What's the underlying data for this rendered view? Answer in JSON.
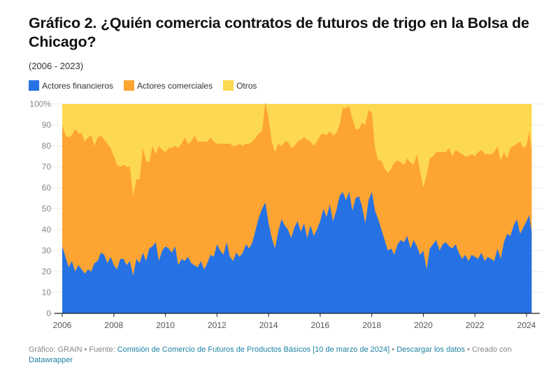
{
  "title": "Gráfico 2. ¿Quién comercia contratos de futuros de trigo en la Bolsa de Chicago?",
  "subtitle": "(2006 - 2023)",
  "legend": [
    {
      "label": "Actores financieros",
      "color": "#2672e4"
    },
    {
      "label": "Actores comerciales",
      "color": "#fda433"
    },
    {
      "label": "Otros",
      "color": "#fdd851"
    }
  ],
  "footer": {
    "prefix": "Gráfico: GRAIN • Fuente: ",
    "source_link": "Comisión de Comercio de Futuros de Productos Básicos [10 de marzo de 2024]",
    "sep1": " • ",
    "download_link": "Descargar los datos",
    "sep2": " • Creado con ",
    "tool_link": "Datawrapper"
  },
  "chart_data": {
    "type": "area",
    "stacked": true,
    "title": "Gráfico 2. ¿Quién comercia contratos de futuros de trigo en la Bolsa de Chicago?",
    "subtitle": "(2006 - 2023)",
    "xlabel": "",
    "ylabel": "",
    "ylim": [
      0,
      100
    ],
    "xlim": [
      2006,
      2024.2
    ],
    "y_ticks": [
      "0",
      "10",
      "20",
      "30",
      "40",
      "50",
      "60",
      "70",
      "80",
      "90",
      "100%"
    ],
    "x_ticks": [
      "2006",
      "2008",
      "2010",
      "2012",
      "2014",
      "2016",
      "2018",
      "2020",
      "2022",
      "2024"
    ],
    "grid": true,
    "legend_position": "top-left",
    "x": [
      2006.0,
      2006.125,
      2006.25,
      2006.375,
      2006.5,
      2006.625,
      2006.75,
      2006.875,
      2007.0,
      2007.125,
      2007.25,
      2007.375,
      2007.5,
      2007.625,
      2007.75,
      2007.875,
      2008.0,
      2008.125,
      2008.25,
      2008.375,
      2008.5,
      2008.625,
      2008.75,
      2008.875,
      2009.0,
      2009.125,
      2009.25,
      2009.375,
      2009.5,
      2009.625,
      2009.75,
      2009.875,
      2010.0,
      2010.125,
      2010.25,
      2010.375,
      2010.5,
      2010.625,
      2010.75,
      2010.875,
      2011.0,
      2011.125,
      2011.25,
      2011.375,
      2011.5,
      2011.625,
      2011.75,
      2011.875,
      2012.0,
      2012.125,
      2012.25,
      2012.375,
      2012.5,
      2012.625,
      2012.75,
      2012.875,
      2013.0,
      2013.125,
      2013.25,
      2013.375,
      2013.5,
      2013.625,
      2013.75,
      2013.875,
      2014.0,
      2014.125,
      2014.25,
      2014.375,
      2014.5,
      2014.625,
      2014.75,
      2014.875,
      2015.0,
      2015.125,
      2015.25,
      2015.375,
      2015.5,
      2015.625,
      2015.75,
      2015.875,
      2016.0,
      2016.125,
      2016.25,
      2016.375,
      2016.5,
      2016.625,
      2016.75,
      2016.875,
      2017.0,
      2017.125,
      2017.25,
      2017.375,
      2017.5,
      2017.625,
      2017.75,
      2017.875,
      2018.0,
      2018.125,
      2018.25,
      2018.375,
      2018.5,
      2018.625,
      2018.75,
      2018.875,
      2019.0,
      2019.125,
      2019.25,
      2019.375,
      2019.5,
      2019.625,
      2019.75,
      2019.875,
      2020.0,
      2020.125,
      2020.25,
      2020.375,
      2020.5,
      2020.625,
      2020.75,
      2020.875,
      2021.0,
      2021.125,
      2021.25,
      2021.375,
      2021.5,
      2021.625,
      2021.75,
      2021.875,
      2022.0,
      2022.125,
      2022.25,
      2022.375,
      2022.5,
      2022.625,
      2022.75,
      2022.875,
      2023.0,
      2023.125,
      2023.25,
      2023.375,
      2023.5,
      2023.625,
      2023.75,
      2023.875,
      2024.0,
      2024.1,
      2024.2
    ],
    "series": [
      {
        "name": "Actores financieros",
        "color": "#2672e4",
        "values": [
          32,
          27,
          22,
          25,
          20,
          23,
          21,
          19,
          21,
          20,
          24,
          25,
          29,
          28,
          24,
          27,
          23,
          21,
          26,
          26,
          23,
          25,
          18,
          26,
          24,
          29,
          25,
          31,
          32,
          34,
          25,
          30,
          32,
          31,
          29,
          32,
          23,
          26,
          25,
          27,
          24,
          23,
          22,
          25,
          21,
          24,
          28,
          27,
          33,
          30,
          28,
          34,
          27,
          25,
          29,
          27,
          29,
          33,
          31,
          34,
          40,
          46,
          50,
          53,
          43,
          36,
          31,
          39,
          45,
          42,
          40,
          36,
          41,
          44,
          39,
          43,
          36,
          42,
          37,
          40,
          44,
          50,
          46,
          52,
          44,
          49,
          56,
          58,
          54,
          58,
          49,
          55,
          56,
          51,
          43,
          54,
          58,
          49,
          45,
          40,
          35,
          30,
          31,
          28,
          33,
          35,
          34,
          37,
          31,
          35,
          32,
          28,
          30,
          21,
          31,
          33,
          35,
          30,
          33,
          34,
          32,
          31,
          33,
          29,
          26,
          28,
          25,
          28,
          27,
          26,
          29,
          25,
          27,
          26,
          25,
          31,
          26,
          34,
          38,
          37,
          42,
          45,
          38,
          41,
          44,
          47,
          39,
          44,
          48
        ]
      },
      {
        "name": "Actores comerciales",
        "color": "#fda433",
        "values": [
          58,
          58,
          62,
          60,
          68,
          63,
          65,
          63,
          63,
          65,
          56,
          59,
          56,
          55,
          57,
          52,
          52,
          50,
          44,
          45,
          47,
          45,
          38,
          38,
          40,
          50,
          48,
          41,
          48,
          42,
          55,
          48,
          45,
          48,
          50,
          48,
          56,
          55,
          59,
          54,
          58,
          62,
          60,
          57,
          61,
          58,
          56,
          55,
          48,
          51,
          53,
          47,
          54,
          55,
          51,
          54,
          51,
          48,
          50,
          48,
          44,
          40,
          37,
          48,
          50,
          46,
          46,
          42,
          35,
          40,
          42,
          43,
          39,
          38,
          44,
          41,
          47,
          40,
          43,
          42,
          41,
          36,
          39,
          35,
          41,
          37,
          34,
          40,
          44,
          41,
          44,
          33,
          32,
          40,
          47,
          43,
          38,
          30,
          28,
          33,
          34,
          37,
          38,
          44,
          40,
          37,
          37,
          37,
          41,
          36,
          44,
          40,
          30,
          45,
          43,
          42,
          42,
          47,
          44,
          43,
          47,
          44,
          45,
          48,
          50,
          47,
          50,
          48,
          48,
          51,
          49,
          51,
          49,
          50,
          52,
          49,
          47,
          43,
          36,
          42,
          38,
          36,
          44,
          38,
          36,
          40,
          39,
          38,
          36
        ]
      },
      {
        "name": "Otros",
        "color": "#fdd851",
        "values": "remainder to 100%"
      }
    ]
  }
}
